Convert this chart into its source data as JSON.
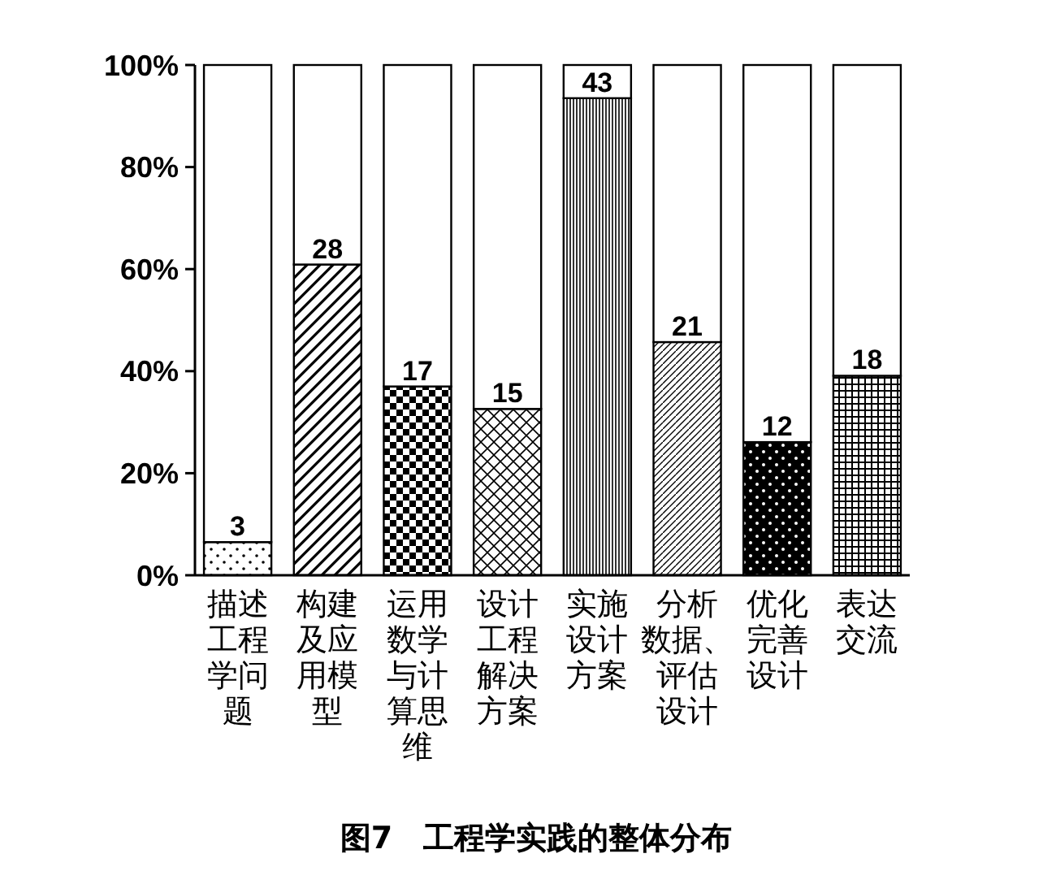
{
  "chart_data": {
    "type": "bar",
    "title": "图7　工程学实践的整体分布",
    "stacked": true,
    "categories": [
      "描述工程学问题",
      "构建及应用模型",
      "运用数学与计算思维",
      "设计工程解决方案",
      "实施设计方案",
      "分析数据、评估设计",
      "优化完善设计",
      "表达交流"
    ],
    "series": [
      {
        "color": "#000000",
        "values": [
          6.5,
          60.9,
          37.0,
          32.6,
          93.5,
          45.7,
          26.1,
          39.1
        ]
      },
      {
        "color": "#ffffff",
        "values": [
          93.5,
          39.1,
          63.0,
          67.4,
          6.5,
          54.3,
          73.9,
          60.9
        ]
      }
    ],
    "ylim": [
      0,
      100
    ],
    "yticks": [
      {
        "value": 0,
        "label": "0%"
      },
      {
        "value": 20,
        "label": "20%"
      },
      {
        "value": 40,
        "label": "40%"
      },
      {
        "value": 60,
        "label": "60%"
      },
      {
        "value": 80,
        "label": "80%"
      },
      {
        "value": 100,
        "label": "100%"
      }
    ],
    "annotations": [
      {
        "text": "3",
        "x": "描述工程学问题",
        "y": 6.5
      },
      {
        "text": "28",
        "x": "构建及应用模型",
        "y": 60.9
      },
      {
        "text": "17",
        "x": "运用数学与计算思维",
        "y": 37.0
      },
      {
        "text": "15",
        "x": "设计工程解决方案",
        "y": 32.6
      },
      {
        "text": "43",
        "x": "实施设计方案",
        "y": 93.5
      },
      {
        "text": "21",
        "x": "分析数据、评估设计",
        "y": 45.7
      },
      {
        "text": "12",
        "x": "优化完善设计",
        "y": 26.1
      },
      {
        "text": "18",
        "x": "表达交流",
        "y": 39.1
      }
    ],
    "grid": false
  }
}
